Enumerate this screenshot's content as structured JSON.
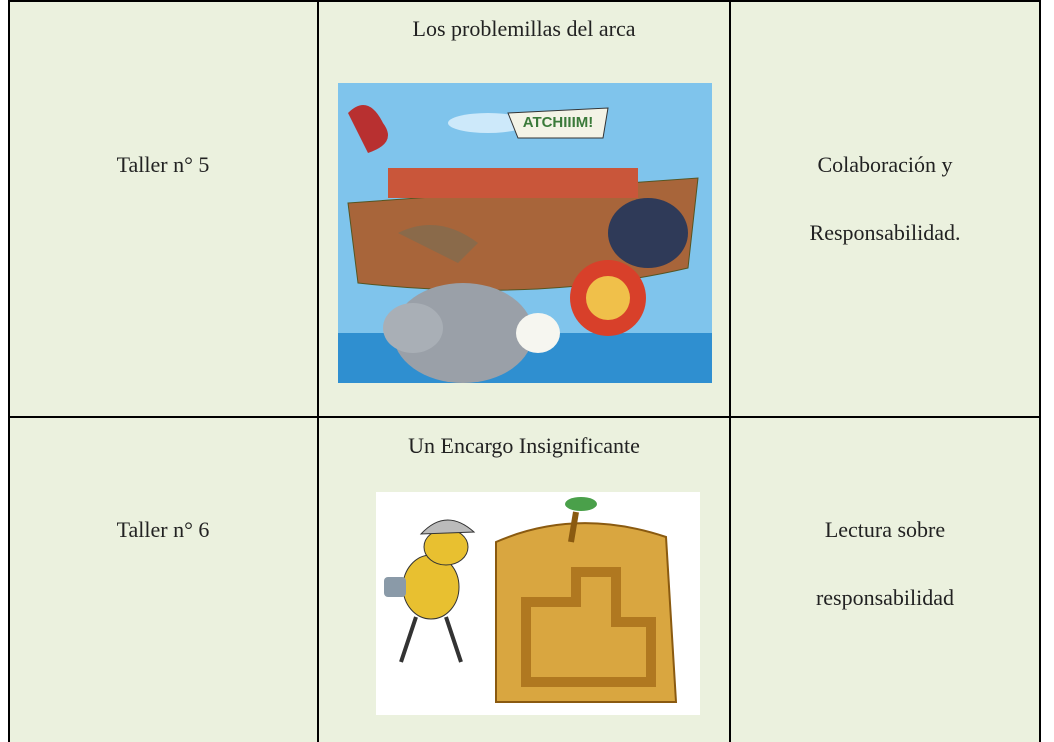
{
  "table": {
    "rows": [
      {
        "label": "Taller n° 5",
        "title": "Los problemillas del arca",
        "image_text": "ATCHIIIM!",
        "description": [
          "Colaboración y",
          "Responsabilidad."
        ]
      },
      {
        "label": "Taller n° 6",
        "title": "Un Encargo Insignificante",
        "description": [
          "Lectura sobre",
          "responsabilidad"
        ]
      }
    ]
  }
}
